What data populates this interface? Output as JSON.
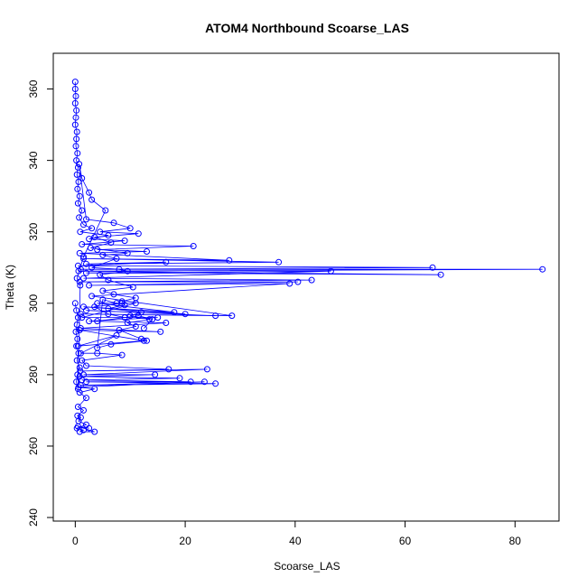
{
  "chart_data": {
    "type": "scatter",
    "title": "ATOM4 Northbound Scoarse_LAS",
    "xlabel": "Scoarse_LAS",
    "ylabel": "Theta (K)",
    "xlim": [
      -4,
      88
    ],
    "ylim": [
      239,
      370
    ],
    "xticks": [
      0,
      20,
      40,
      60,
      80
    ],
    "yticks": [
      240,
      260,
      280,
      300,
      320,
      340,
      360
    ],
    "grid": false,
    "legend": "none",
    "style": "points connected by lines (open circles)",
    "series_color": "#0000ff",
    "series": [
      {
        "points": [
          [
            0.0,
            362.0
          ],
          [
            0.0,
            360.0
          ],
          [
            0.1,
            358.0
          ],
          [
            0.0,
            356.0
          ],
          [
            0.2,
            354.0
          ],
          [
            0.1,
            352.0
          ],
          [
            0.0,
            350.0
          ],
          [
            0.3,
            348.0
          ],
          [
            0.2,
            346.0
          ],
          [
            0.1,
            344.0
          ],
          [
            0.4,
            342.0
          ],
          [
            0.2,
            340.0
          ],
          [
            0.5,
            338.0
          ],
          [
            0.3,
            336.0
          ],
          [
            0.6,
            334.0
          ],
          [
            0.4,
            332.0
          ],
          [
            0.8,
            330.0
          ],
          [
            0.5,
            328.0
          ],
          [
            1.2,
            326.0
          ],
          [
            0.7,
            324.0
          ],
          [
            1.5,
            322.0
          ],
          [
            3.0,
            321.0
          ],
          [
            0.9,
            320.0
          ],
          [
            6.0,
            319.0
          ],
          [
            2.5,
            318.0
          ],
          [
            9.0,
            317.5
          ],
          [
            1.2,
            316.5
          ],
          [
            21.5,
            316.0
          ],
          [
            4.0,
            315.0
          ],
          [
            13.0,
            314.5
          ],
          [
            0.8,
            314.0
          ],
          [
            28.0,
            312.0
          ],
          [
            1.5,
            312.5
          ],
          [
            37.0,
            311.5
          ],
          [
            2.0,
            311.0
          ],
          [
            16.5,
            311.5
          ],
          [
            0.5,
            310.5
          ],
          [
            65.0,
            310.0
          ],
          [
            1.0,
            309.5
          ],
          [
            85.0,
            309.5
          ],
          [
            0.6,
            309.0
          ],
          [
            66.5,
            308.0
          ],
          [
            2.0,
            308.5
          ],
          [
            46.5,
            309.0
          ],
          [
            1.5,
            307.0
          ],
          [
            43.0,
            306.5
          ],
          [
            0.8,
            306.0
          ],
          [
            40.5,
            306.0
          ],
          [
            2.5,
            305.0
          ],
          [
            39.0,
            305.5
          ],
          [
            3.0,
            302.0
          ],
          [
            28.5,
            296.5
          ],
          [
            1.0,
            297.0
          ],
          [
            25.5,
            296.5
          ],
          [
            2.0,
            298.0
          ],
          [
            20.0,
            297.0
          ],
          [
            1.5,
            299.0
          ],
          [
            18.0,
            297.5
          ],
          [
            4.0,
            300.0
          ],
          [
            11.0,
            300.0
          ],
          [
            1.2,
            296.0
          ],
          [
            15.0,
            296.0
          ],
          [
            2.5,
            295.0
          ],
          [
            16.5,
            294.5
          ],
          [
            1.0,
            293.0
          ],
          [
            15.5,
            292.0
          ],
          [
            0.8,
            292.5
          ],
          [
            12.5,
            289.5
          ],
          [
            0.5,
            288.0
          ],
          [
            7.5,
            291.0
          ],
          [
            1.0,
            286.0
          ],
          [
            4.0,
            286.0
          ],
          [
            8.5,
            285.5
          ],
          [
            1.2,
            284.0
          ],
          [
            2.0,
            282.5
          ],
          [
            17.0,
            281.5
          ],
          [
            0.9,
            281.0
          ],
          [
            24.0,
            281.5
          ],
          [
            1.5,
            280.0
          ],
          [
            14.5,
            280.0
          ],
          [
            0.8,
            279.5
          ],
          [
            19.0,
            279.0
          ],
          [
            1.2,
            278.5
          ],
          [
            21.0,
            278.0
          ],
          [
            2.0,
            278.0
          ],
          [
            25.5,
            277.5
          ],
          [
            1.0,
            277.0
          ],
          [
            23.5,
            278.0
          ],
          [
            0.6,
            276.5
          ],
          [
            3.5,
            276.0
          ],
          [
            0.8,
            275.0
          ],
          [
            2.0,
            273.5
          ],
          [
            0.5,
            271.0
          ],
          [
            1.5,
            270.0
          ],
          [
            0.4,
            268.5
          ],
          [
            1.0,
            268.0
          ],
          [
            0.6,
            267.0
          ],
          [
            2.0,
            266.0
          ],
          [
            0.3,
            265.0
          ],
          [
            1.5,
            264.5
          ],
          [
            0.8,
            264.0
          ],
          [
            3.5,
            264.0
          ],
          [
            0.5,
            265.5
          ],
          [
            2.5,
            265.0
          ]
        ]
      },
      {
        "points": [
          [
            0.0,
            300.0
          ],
          [
            0.2,
            298.0
          ],
          [
            0.5,
            296.0
          ],
          [
            0.3,
            294.0
          ],
          [
            0.1,
            292.0
          ],
          [
            0.4,
            290.0
          ],
          [
            0.2,
            288.0
          ],
          [
            0.6,
            286.0
          ],
          [
            0.3,
            284.0
          ],
          [
            0.8,
            282.0
          ],
          [
            0.4,
            280.0
          ],
          [
            0.2,
            278.0
          ],
          [
            0.5,
            276.0
          ],
          [
            0.9,
            305.0
          ],
          [
            0.3,
            307.0
          ],
          [
            1.5,
            313.0
          ],
          [
            5.5,
            326.0
          ],
          [
            3.0,
            329.0
          ],
          [
            2.5,
            331.0
          ],
          [
            1.2,
            335.0
          ],
          [
            0.7,
            339.0
          ],
          [
            2.0,
            323.5
          ],
          [
            7.0,
            322.5
          ],
          [
            10.0,
            321.0
          ],
          [
            4.5,
            320.0
          ],
          [
            11.5,
            319.5
          ],
          [
            3.5,
            318.5
          ],
          [
            6.5,
            317.0
          ],
          [
            2.8,
            315.5
          ],
          [
            9.5,
            314.0
          ],
          [
            5.0,
            313.5
          ],
          [
            7.5,
            312.5
          ],
          [
            3.0,
            310.0
          ],
          [
            8.0,
            309.5
          ],
          [
            9.5,
            309.0
          ],
          [
            4.5,
            308.0
          ],
          [
            6.0,
            306.5
          ],
          [
            10.5,
            304.5
          ],
          [
            5.0,
            303.5
          ],
          [
            7.0,
            302.5
          ],
          [
            11.0,
            301.5
          ],
          [
            8.5,
            300.5
          ],
          [
            9.0,
            299.5
          ],
          [
            6.0,
            298.5
          ],
          [
            12.0,
            297.5
          ],
          [
            10.0,
            296.5
          ],
          [
            13.5,
            295.5
          ],
          [
            9.5,
            294.5
          ],
          [
            11.0,
            293.5
          ],
          [
            8.0,
            292.5
          ],
          [
            12.0,
            290.0
          ],
          [
            13.0,
            289.5
          ],
          [
            6.5,
            288.5
          ],
          [
            4.0,
            287.5
          ],
          [
            5.0,
            301.0
          ],
          [
            7.5,
            300.0
          ],
          [
            8.5,
            300.0
          ],
          [
            3.5,
            299.0
          ],
          [
            6.0,
            297.0
          ],
          [
            9.0,
            296.0
          ],
          [
            4.0,
            295.0
          ],
          [
            11.5,
            296.5
          ],
          [
            14.0,
            295.5
          ],
          [
            12.5,
            293.0
          ]
        ]
      }
    ]
  }
}
